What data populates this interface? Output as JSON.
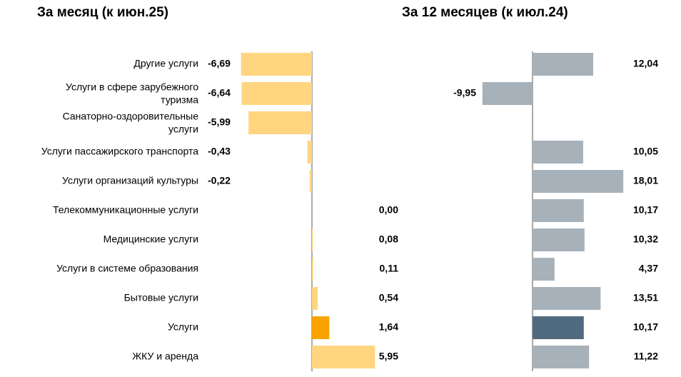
{
  "colors": {
    "month_bar": "#ffd580",
    "month_highlight": "#f8a300",
    "year_bar": "#a7b1ba",
    "year_highlight": "#506a80",
    "axis": "#555555"
  },
  "chart_data": [
    {
      "type": "bar",
      "orientation": "horizontal",
      "title": "За месяц (к июн.25)",
      "categories": [
        [
          "Другие услуги"
        ],
        [
          "Услуги в сфере зарубежного",
          "туризма"
        ],
        [
          "Санаторно-оздоровительные",
          "услуги"
        ],
        [
          "Услуги пассажирского транспорта"
        ],
        [
          "Услуги организаций культуры"
        ],
        [
          "Телекоммуникационные услуги"
        ],
        [
          "Медицинские услуги"
        ],
        [
          "Услуги в системе образования"
        ],
        [
          "Бытовые услуги"
        ],
        [
          "Услуги"
        ],
        [
          "ЖКУ и аренда"
        ]
      ],
      "values": [
        -6.69,
        -6.64,
        -5.99,
        -0.43,
        -0.22,
        0.0,
        0.08,
        0.11,
        0.54,
        1.64,
        5.95
      ],
      "labels": [
        "-6,69",
        "-6,64",
        "-5,99",
        "-0,43",
        "-0,22",
        "0,00",
        "0,08",
        "0,11",
        "0,54",
        "1,64",
        "5,95"
      ],
      "highlight_category_index": 9
    },
    {
      "type": "bar",
      "orientation": "horizontal",
      "title": "За 12 месяцев (к июл.24)",
      "categories_shared_with_first_chart": true,
      "values": [
        12.04,
        -9.95,
        null,
        10.05,
        18.01,
        10.17,
        10.32,
        4.37,
        13.51,
        10.17,
        11.22
      ],
      "labels": [
        "12,04",
        "-9,95",
        "",
        "10,05",
        "18,01",
        "10,17",
        "10,32",
        "4,37",
        "13,51",
        "10,17",
        "11,22"
      ],
      "highlight_category_index": 9
    }
  ]
}
